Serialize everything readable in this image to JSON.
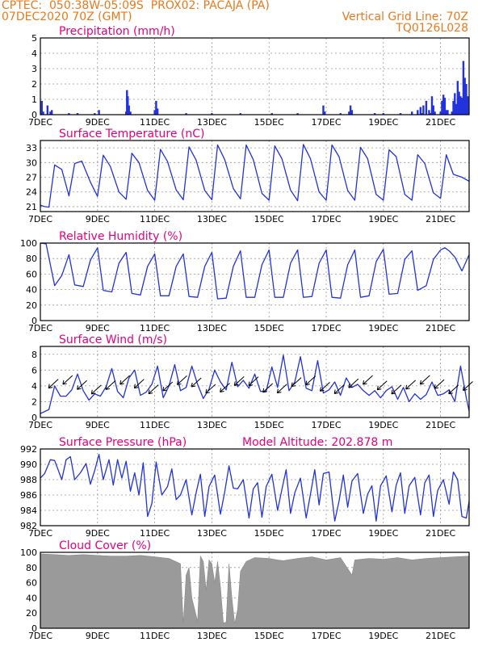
{
  "header": {
    "line1": "CPTEC:  050:38W-05:09S  PROX02: PACAJA (PA)",
    "line2_left": "07DEC2020 70Z (GMT)",
    "line2_right": "Vertical Grid Line: 70Z",
    "line3_right": "TQ0126L028"
  },
  "colors": {
    "header": "#e87a1e",
    "title": "#e6007e",
    "series": "#2233dd",
    "cloud": "#9a9a9a",
    "grid": "#999999"
  },
  "chart_data": [
    {
      "type": "bar",
      "title": "Precipitation (mm/h)",
      "ylim": [
        0,
        5
      ],
      "yticks": [
        0,
        1,
        2,
        3,
        4,
        5
      ],
      "xticks": [
        "7DEC",
        "9DEC",
        "11DEC",
        "13DEC",
        "15DEC",
        "17DEC",
        "19DEC",
        "21DEC"
      ],
      "xlim_days": [
        7,
        22
      ],
      "x_days": [
        7.05,
        7.1,
        7.25,
        7.35,
        7.4,
        8.0,
        8.3,
        8.9,
        9.05,
        10.0,
        10.03,
        10.06,
        10.1,
        10.15,
        11.0,
        11.05,
        11.1,
        12.1,
        13.0,
        14.0,
        15.1,
        16.0,
        16.9,
        16.95,
        17.5,
        17.8,
        17.85,
        17.9,
        18.7,
        19.0,
        19.6,
        20.0,
        20.2,
        20.3,
        20.35,
        20.4,
        20.5,
        20.6,
        20.65,
        20.7,
        20.75,
        20.8,
        21.0,
        21.05,
        21.1,
        21.15,
        21.2,
        21.25,
        21.4,
        21.45,
        21.5,
        21.55,
        21.6,
        21.65,
        21.7,
        21.75,
        21.8,
        21.85,
        21.9,
        21.95
      ],
      "values": [
        0.9,
        0.2,
        0.6,
        0.2,
        0.3,
        0.1,
        0.1,
        0.1,
        0.3,
        0.2,
        1.6,
        1.2,
        0.6,
        0.2,
        0.3,
        0.9,
        0.4,
        0.1,
        0.1,
        0.1,
        0.1,
        0.1,
        0.6,
        0.2,
        0.1,
        0.2,
        0.6,
        0.3,
        0.1,
        0.1,
        0.1,
        0.2,
        0.3,
        0.5,
        0.1,
        0.6,
        0.9,
        0.3,
        0.1,
        1.2,
        0.6,
        0.2,
        0.2,
        0.9,
        1.3,
        1.1,
        0.3,
        0.3,
        0.2,
        0.9,
        1.4,
        0.7,
        2.2,
        1.5,
        1.2,
        1.1,
        3.5,
        2.4,
        2.0,
        1.2
      ]
    },
    {
      "type": "line",
      "title": "Surface Temperature (nC)",
      "ylim": [
        20,
        34.5
      ],
      "yticks": [
        21,
        24,
        27,
        30,
        33
      ],
      "xticks": [
        "7DEC",
        "9DEC",
        "11DEC",
        "13DEC",
        "15DEC",
        "17DEC",
        "19DEC",
        "21DEC"
      ],
      "xlim_days": [
        7,
        22
      ],
      "x_days": [
        7.0,
        7.15,
        7.3,
        7.5,
        7.75,
        8.0,
        8.2,
        8.45,
        8.75,
        9.0,
        9.2,
        9.45,
        9.75,
        10.0,
        10.2,
        10.45,
        10.75,
        11.0,
        11.2,
        11.45,
        11.75,
        12.0,
        12.2,
        12.45,
        12.75,
        13.0,
        13.2,
        13.45,
        13.75,
        14.0,
        14.2,
        14.45,
        14.75,
        15.0,
        15.2,
        15.45,
        15.75,
        16.0,
        16.2,
        16.45,
        16.75,
        17.0,
        17.2,
        17.45,
        17.75,
        18.0,
        18.2,
        18.45,
        18.75,
        19.0,
        19.2,
        19.45,
        19.75,
        20.0,
        20.2,
        20.45,
        20.75,
        21.0,
        21.2,
        21.45,
        21.75,
        22.0
      ],
      "values": [
        21.3,
        21.0,
        20.9,
        29.5,
        28.6,
        23.2,
        29.8,
        30.3,
        26.0,
        23.1,
        31.5,
        29.2,
        24.0,
        22.5,
        31.9,
        30.0,
        24.3,
        22.3,
        32.7,
        30.2,
        24.4,
        22.4,
        33.2,
        30.5,
        24.3,
        22.4,
        33.6,
        30.6,
        24.7,
        22.6,
        33.6,
        30.6,
        23.7,
        22.3,
        33.4,
        30.8,
        24.4,
        22.2,
        33.7,
        30.8,
        24.0,
        22.3,
        33.6,
        31.2,
        24.3,
        22.3,
        33.1,
        30.8,
        23.5,
        22.3,
        32.6,
        31.2,
        23.5,
        22.3,
        31.6,
        29.8,
        23.8,
        22.7,
        31.6,
        27.6,
        27.0,
        26.2
      ]
    },
    {
      "type": "line",
      "title": "Relative Humidity (%)",
      "ylim": [
        0,
        100
      ],
      "yticks": [
        0,
        20,
        40,
        60,
        80,
        100
      ],
      "xticks": [
        "7DEC",
        "9DEC",
        "11DEC",
        "13DEC",
        "15DEC",
        "17DEC",
        "19DEC",
        "21DEC"
      ],
      "xlim_days": [
        7,
        22
      ],
      "x_days": [
        7.0,
        7.2,
        7.5,
        7.75,
        8.0,
        8.2,
        8.5,
        8.75,
        9.0,
        9.2,
        9.5,
        9.75,
        10.0,
        10.2,
        10.5,
        10.75,
        11.0,
        11.2,
        11.5,
        11.75,
        12.0,
        12.2,
        12.5,
        12.75,
        13.0,
        13.2,
        13.5,
        13.75,
        14.0,
        14.2,
        14.5,
        14.75,
        15.0,
        15.2,
        15.5,
        15.75,
        16.0,
        16.2,
        16.5,
        16.75,
        17.0,
        17.2,
        17.5,
        17.75,
        18.0,
        18.2,
        18.5,
        18.75,
        19.0,
        19.2,
        19.5,
        19.75,
        20.0,
        20.2,
        20.5,
        20.75,
        21.0,
        21.15,
        21.3,
        21.5,
        21.75,
        22.0
      ],
      "values": [
        100,
        99,
        45,
        58,
        85,
        46,
        44,
        78,
        94,
        39,
        37,
        74,
        88,
        35,
        33,
        70,
        86,
        32,
        32,
        70,
        86,
        31,
        30,
        70,
        88,
        28,
        29,
        70,
        90,
        30,
        30,
        72,
        91,
        30,
        30,
        74,
        91,
        30,
        31,
        74,
        91,
        30,
        29,
        72,
        91,
        30,
        32,
        76,
        92,
        34,
        35,
        79,
        90,
        39,
        45,
        79,
        91,
        94,
        90,
        82,
        64,
        85
      ]
    },
    {
      "type": "line",
      "title": "Surface Wind (m/s)",
      "ylim": [
        0,
        9
      ],
      "yticks": [
        0,
        2,
        4,
        6,
        8
      ],
      "xticks": [
        "7DEC",
        "9DEC",
        "11DEC",
        "13DEC",
        "15DEC",
        "17DEC",
        "19DEC",
        "21DEC"
      ],
      "xlim_days": [
        7,
        22
      ],
      "x_days": [
        7.0,
        7.3,
        7.5,
        7.7,
        7.9,
        8.1,
        8.3,
        8.5,
        8.7,
        8.9,
        9.1,
        9.3,
        9.5,
        9.7,
        9.9,
        10.1,
        10.3,
        10.5,
        10.7,
        10.9,
        11.1,
        11.3,
        11.5,
        11.7,
        11.9,
        12.1,
        12.3,
        12.5,
        12.7,
        12.9,
        13.1,
        13.3,
        13.5,
        13.7,
        13.9,
        14.1,
        14.3,
        14.5,
        14.7,
        14.9,
        15.1,
        15.3,
        15.5,
        15.7,
        15.9,
        16.1,
        16.3,
        16.5,
        16.7,
        16.9,
        17.1,
        17.3,
        17.5,
        17.7,
        17.9,
        18.1,
        18.3,
        18.5,
        18.7,
        18.9,
        19.1,
        19.3,
        19.5,
        19.7,
        19.9,
        20.1,
        20.3,
        20.5,
        20.7,
        20.9,
        21.1,
        21.3,
        21.5,
        21.7,
        21.9,
        22.0
      ],
      "values": [
        0.5,
        1.0,
        4.0,
        2.7,
        2.7,
        3.5,
        5.5,
        3.4,
        2.2,
        3.0,
        2.7,
        3.9,
        6.2,
        3.3,
        2.5,
        5.0,
        6.0,
        2.8,
        3.2,
        4.2,
        6.5,
        2.5,
        4.0,
        6.7,
        3.4,
        3.8,
        6.5,
        4.2,
        2.4,
        3.6,
        6.0,
        4.5,
        3.5,
        7.0,
        3.9,
        4.7,
        3.7,
        5.5,
        3.3,
        3.3,
        6.4,
        3.8,
        7.9,
        3.4,
        4.5,
        7.7,
        3.7,
        3.4,
        7.2,
        3.1,
        3.5,
        4.5,
        2.8,
        5.0,
        3.8,
        4.2,
        3.4,
        2.8,
        3.4,
        2.5,
        3.4,
        3.9,
        2.3,
        3.8,
        2.0,
        3.0,
        2.3,
        2.9,
        4.5,
        2.8,
        3.0,
        3.5,
        2.0,
        6.5,
        2.5,
        0.8
      ]
    },
    {
      "type": "line",
      "title": "Surface Pressure (hPa)",
      "annotation": "Model Altitude: 202.878  m",
      "ylim": [
        982,
        992
      ],
      "yticks": [
        982,
        984,
        986,
        988,
        990,
        992
      ],
      "xticks": [
        "7DEC",
        "9DEC",
        "11DEC",
        "13DEC",
        "15DEC",
        "17DEC",
        "19DEC",
        "21DEC"
      ],
      "xlim_days": [
        7,
        22
      ],
      "x_days": [
        7.0,
        7.15,
        7.35,
        7.5,
        7.75,
        7.9,
        8.05,
        8.2,
        8.4,
        8.6,
        8.75,
        8.9,
        9.05,
        9.2,
        9.4,
        9.55,
        9.7,
        9.85,
        10.0,
        10.15,
        10.3,
        10.45,
        10.6,
        10.75,
        10.9,
        11.05,
        11.25,
        11.45,
        11.6,
        11.75,
        11.9,
        12.1,
        12.3,
        12.45,
        12.6,
        12.75,
        12.9,
        13.1,
        13.3,
        13.45,
        13.6,
        13.75,
        13.9,
        14.1,
        14.3,
        14.45,
        14.6,
        14.75,
        14.9,
        15.1,
        15.3,
        15.45,
        15.6,
        15.75,
        15.9,
        16.1,
        16.3,
        16.45,
        16.6,
        16.75,
        16.9,
        17.1,
        17.3,
        17.45,
        17.6,
        17.75,
        17.9,
        18.1,
        18.3,
        18.45,
        18.6,
        18.75,
        18.9,
        19.1,
        19.3,
        19.45,
        19.6,
        19.75,
        19.9,
        20.1,
        20.3,
        20.45,
        20.6,
        20.75,
        20.9,
        21.1,
        21.3,
        21.45,
        21.6,
        21.75,
        21.9,
        22.0
      ],
      "values": [
        988.2,
        988.8,
        990.6,
        990.5,
        988.0,
        990.6,
        991.0,
        988.0,
        988.9,
        990.1,
        987.4,
        989.2,
        991.3,
        988.0,
        990.6,
        987.3,
        990.6,
        988.2,
        990.4,
        986.5,
        988.9,
        986.0,
        990.2,
        983.2,
        984.9,
        990.3,
        986.0,
        987.1,
        989.4,
        985.4,
        986.0,
        988.0,
        983.4,
        986.3,
        988.7,
        983.2,
        987.1,
        988.6,
        983.5,
        986.4,
        989.8,
        986.9,
        986.8,
        988.0,
        983.0,
        986.8,
        987.6,
        983.1,
        987.1,
        988.7,
        984.0,
        986.7,
        989.3,
        983.6,
        986.3,
        988.2,
        983.0,
        986.1,
        989.3,
        984.7,
        988.8,
        989.0,
        982.6,
        985.2,
        988.6,
        984.4,
        987.8,
        988.8,
        983.6,
        986.1,
        987.2,
        982.6,
        987.2,
        988.5,
        983.8,
        987.3,
        988.9,
        983.6,
        987.2,
        988.3,
        983.4,
        987.6,
        988.6,
        983.2,
        986.6,
        988.0,
        984.8,
        989.0,
        988.0,
        983.2,
        983.0,
        985.2
      ]
    },
    {
      "type": "area",
      "title": "Cloud Cover (%)",
      "ylim": [
        0,
        100
      ],
      "yticks": [
        0,
        20,
        40,
        60,
        80,
        100
      ],
      "xticks": [
        "7DEC",
        "9DEC",
        "11DEC",
        "13DEC",
        "15DEC",
        "17DEC",
        "19DEC",
        "21DEC"
      ],
      "xlim_days": [
        7,
        22
      ],
      "x_days": [
        7.0,
        7.5,
        8.0,
        8.5,
        9.0,
        9.5,
        10.0,
        10.5,
        11.0,
        11.5,
        11.9,
        12.0,
        12.1,
        12.2,
        12.3,
        12.5,
        12.6,
        12.7,
        12.8,
        12.9,
        13.0,
        13.1,
        13.2,
        13.3,
        13.4,
        13.5,
        13.6,
        13.7,
        13.8,
        13.9,
        14.0,
        14.2,
        14.5,
        15.0,
        15.3,
        15.5,
        16.0,
        16.5,
        17.0,
        17.5,
        17.9,
        18.0,
        18.5,
        19.0,
        19.5,
        20.0,
        20.5,
        21.0,
        21.5,
        22.0
      ],
      "values": [
        98,
        97,
        96,
        97,
        96,
        95,
        95,
        96,
        94,
        92,
        85,
        6,
        70,
        80,
        40,
        9,
        95,
        88,
        50,
        90,
        85,
        60,
        88,
        55,
        7,
        8,
        85,
        40,
        6,
        25,
        75,
        88,
        93,
        92,
        90,
        89,
        92,
        94,
        90,
        93,
        70,
        90,
        92,
        91,
        93,
        90,
        92,
        93,
        94,
        95
      ]
    }
  ]
}
